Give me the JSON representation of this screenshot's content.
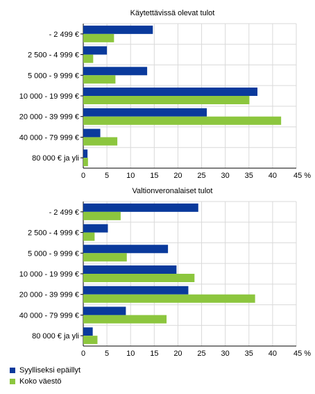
{
  "chart_data": [
    {
      "type": "bar",
      "orientation": "horizontal",
      "title": "Käytettävissä olevat tulot",
      "categories": [
        "- 2 499 €",
        "2 500 - 4 999 €",
        "5 000 - 9 999 €",
        "10 000 - 19 999 €",
        "20 000 - 39 999 €",
        "40 000 - 79 999 €",
        "80 000 € ja yli"
      ],
      "series": [
        {
          "name": "Syylliseksi epäillyt",
          "color": "#0a3a9c",
          "values": [
            14.7,
            5.0,
            13.5,
            36.8,
            26.1,
            3.6,
            0.9
          ]
        },
        {
          "name": "Koko väestö",
          "color": "#8cc63e",
          "values": [
            6.5,
            2.1,
            6.8,
            35.1,
            41.8,
            7.2,
            1.0
          ]
        }
      ],
      "xlim": [
        0,
        45
      ],
      "xticks": [
        "0",
        "5",
        "10",
        "15",
        "20",
        "25",
        "30",
        "35",
        "40",
        "45 %"
      ],
      "grid": true
    },
    {
      "type": "bar",
      "orientation": "horizontal",
      "title": "Valtionveronalaiset tulot",
      "categories": [
        "- 2 499 €",
        "2 500 - 4 999 €",
        "5 000 - 9 999 €",
        "10 000 - 19 999 €",
        "20 000 - 39 999 €",
        "40 000 - 79 999 €",
        "80 000 € ja yli"
      ],
      "series": [
        {
          "name": "Syylliseksi epäillyt",
          "color": "#0a3a9c",
          "values": [
            24.3,
            5.2,
            17.9,
            19.7,
            22.2,
            9.0,
            2.0
          ]
        },
        {
          "name": "Koko väestö",
          "color": "#8cc63e",
          "values": [
            7.9,
            2.4,
            9.2,
            23.5,
            36.3,
            17.6,
            3.0
          ]
        }
      ],
      "xlim": [
        0,
        45
      ],
      "xticks": [
        "0",
        "5",
        "10",
        "15",
        "20",
        "25",
        "30",
        "35",
        "40",
        "45 %"
      ],
      "grid": true
    }
  ],
  "legend": [
    {
      "label": "Syylliseksi epäillyt",
      "color": "#0a3a9c"
    },
    {
      "label": "Koko väestö",
      "color": "#8cc63e"
    }
  ]
}
